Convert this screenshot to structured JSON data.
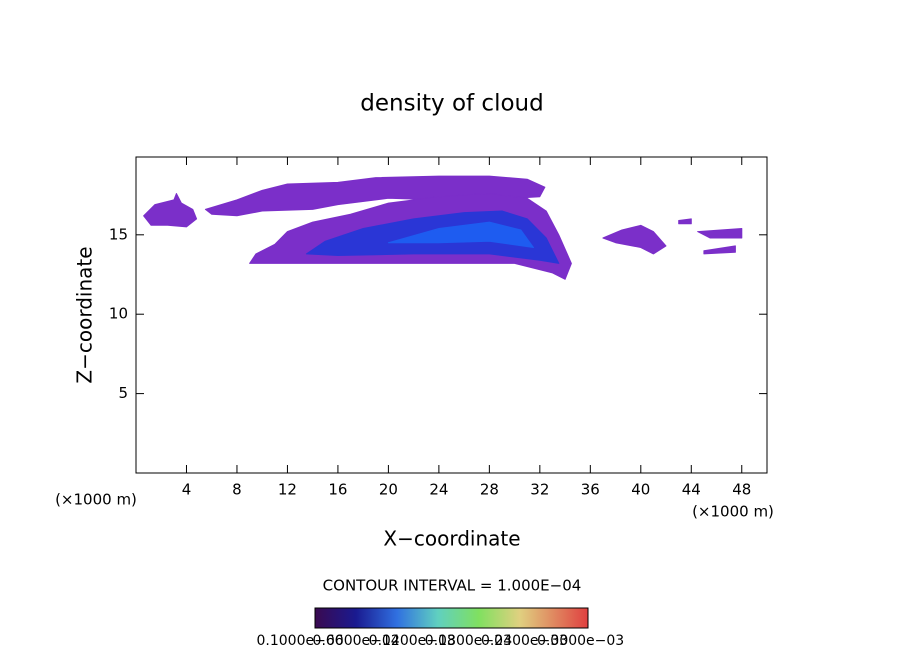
{
  "chart_data": {
    "type": "contour",
    "title": "density of cloud",
    "x_label": "X−coordinate",
    "y_label": "Z−coordinate",
    "x_unit": "(×1000 m)",
    "x_unit_right": "(×1000 m)",
    "xlim": [
      0,
      50
    ],
    "ylim": [
      0,
      19.9
    ],
    "xticks": [
      4,
      8,
      12,
      16,
      20,
      24,
      28,
      32,
      36,
      40,
      44,
      48
    ],
    "yticks": [
      5,
      10,
      15
    ],
    "contour_interval": "CONTOUR INTERVAL = 1.000E−04",
    "regions": [
      {
        "level": 2e-05,
        "color": "#7b2fc9",
        "points": [
          [
            0.6,
            16.2
          ],
          [
            1.5,
            16.9
          ],
          [
            3.0,
            17.2
          ],
          [
            3.2,
            17.6
          ],
          [
            3.6,
            17.0
          ],
          [
            4.5,
            16.6
          ],
          [
            4.8,
            16.0
          ],
          [
            4.0,
            15.5
          ],
          [
            2.5,
            15.6
          ],
          [
            1.2,
            15.6
          ]
        ]
      },
      {
        "level": 2e-05,
        "color": "#7b2fc9",
        "points": [
          [
            5.5,
            16.6
          ],
          [
            8,
            17.2
          ],
          [
            10,
            17.8
          ],
          [
            12,
            18.2
          ],
          [
            16,
            18.3
          ],
          [
            19,
            18.6
          ],
          [
            24,
            18.7
          ],
          [
            28,
            18.7
          ],
          [
            31,
            18.5
          ],
          [
            32.4,
            18.0
          ],
          [
            32,
            17.4
          ],
          [
            30,
            17.3
          ],
          [
            24,
            17.2
          ],
          [
            20,
            17.3
          ],
          [
            16,
            16.9
          ],
          [
            14,
            16.6
          ],
          [
            10,
            16.5
          ],
          [
            8,
            16.2
          ],
          [
            6,
            16.3
          ]
        ]
      },
      {
        "level": 2e-05,
        "color": "#7b2fc9",
        "points": [
          [
            9,
            13.2
          ],
          [
            9.5,
            13.8
          ],
          [
            11,
            14.4
          ],
          [
            12,
            15.2
          ],
          [
            14,
            15.8
          ],
          [
            17,
            16.3
          ],
          [
            20,
            17.0
          ],
          [
            24,
            17.4
          ],
          [
            28,
            17.6
          ],
          [
            31,
            17.3
          ],
          [
            32.5,
            16.5
          ],
          [
            33.5,
            15
          ],
          [
            34.5,
            13.2
          ],
          [
            34,
            12.2
          ],
          [
            33,
            12.6
          ],
          [
            30,
            13.2
          ],
          [
            26,
            13.2
          ],
          [
            20,
            13.2
          ],
          [
            14,
            13.2
          ]
        ]
      },
      {
        "level": 2e-05,
        "color": "#7b2fc9",
        "points": [
          [
            37,
            14.8
          ],
          [
            38.5,
            15.3
          ],
          [
            40,
            15.6
          ],
          [
            41,
            15.2
          ],
          [
            42,
            14.3
          ],
          [
            41,
            13.8
          ],
          [
            40,
            14.2
          ],
          [
            38,
            14.5
          ]
        ]
      },
      {
        "level": 2e-05,
        "color": "#7b2fc9",
        "points": [
          [
            44.5,
            15.2
          ],
          [
            48,
            15.4
          ],
          [
            48,
            14.8
          ],
          [
            45.5,
            14.8
          ]
        ]
      },
      {
        "level": 2e-05,
        "color": "#7b2fc9",
        "points": [
          [
            45,
            14.0
          ],
          [
            47.5,
            14.3
          ],
          [
            47.5,
            13.9
          ],
          [
            45,
            13.8
          ]
        ]
      },
      {
        "level": 2e-05,
        "color": "#7b2fc9",
        "points": [
          [
            43,
            15.9
          ],
          [
            44,
            16
          ],
          [
            44,
            15.7
          ],
          [
            43,
            15.7
          ]
        ]
      },
      {
        "level": 8e-05,
        "color": "#2a36d6",
        "points": [
          [
            13.5,
            13.8
          ],
          [
            15,
            14.6
          ],
          [
            18,
            15.4
          ],
          [
            22,
            16.0
          ],
          [
            26,
            16.4
          ],
          [
            29,
            16.5
          ],
          [
            31,
            16.0
          ],
          [
            32.5,
            14.8
          ],
          [
            33.5,
            13.2
          ],
          [
            32,
            13.4
          ],
          [
            28,
            13.8
          ],
          [
            22,
            13.8
          ],
          [
            16,
            13.7
          ]
        ]
      },
      {
        "level": 0.00014,
        "color": "#1e5cf0",
        "points": [
          [
            20,
            14.5
          ],
          [
            24,
            15.4
          ],
          [
            28,
            15.8
          ],
          [
            30.5,
            15.3
          ],
          [
            31.5,
            14.2
          ],
          [
            28,
            14.6
          ],
          [
            24,
            14.5
          ]
        ]
      }
    ],
    "colorbar_lim": [
      0,
      0.00031
    ],
    "colorbar_ticks": [
      {
        "value": 1e-07,
        "label": "0.1000e−06"
      },
      {
        "value": 6e-05,
        "label": "0.6000e−04"
      },
      {
        "value": 0.00012,
        "label": "0.1200e−03"
      },
      {
        "value": 0.00018,
        "label": "0.1800e−03"
      },
      {
        "value": 0.00024,
        "label": "0.2400e−03"
      },
      {
        "value": 0.0003,
        "label": "0.3000e−03"
      }
    ]
  }
}
